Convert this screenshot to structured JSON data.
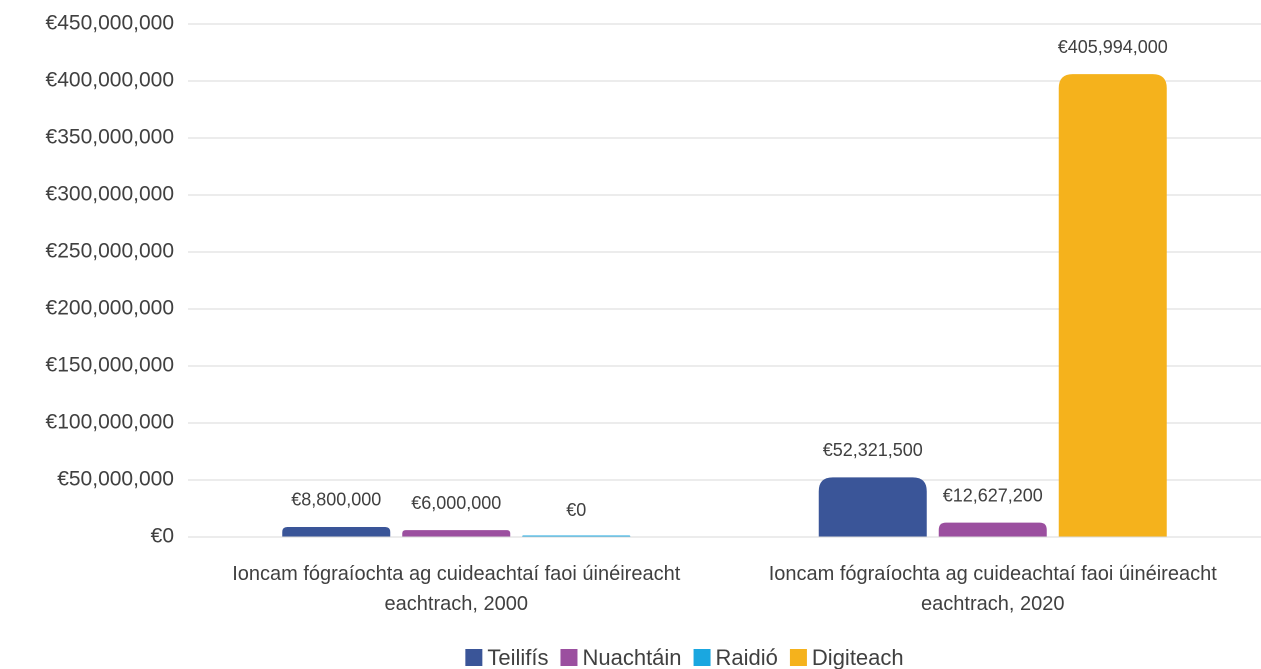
{
  "chart_data": {
    "type": "bar",
    "categories": [
      "Ioncam fógraíochta ag cuideachtaí faoi úinéireacht eachtrach, 2000",
      "Ioncam fógraíochta ag cuideachtaí faoi úinéireacht eachtrach, 2020"
    ],
    "series": [
      {
        "name": "Teilifís",
        "color": "#3a5598",
        "values": [
          8800000,
          52321500
        ],
        "value_labels": [
          "€8,800,000",
          "€52,321,500"
        ]
      },
      {
        "name": "Nuachtáin",
        "color": "#9b4f9f",
        "values": [
          6000000,
          12627200
        ],
        "value_labels": [
          "€6,000,000",
          "€12,627,200"
        ]
      },
      {
        "name": "Raidió",
        "color": "#1aa7e0",
        "values": [
          0,
          null
        ],
        "value_labels": [
          "€0",
          null
        ]
      },
      {
        "name": "Digiteach",
        "color": "#f5b21c",
        "values": [
          null,
          405994000
        ],
        "value_labels": [
          null,
          "€405,994,000"
        ]
      }
    ],
    "ylim": [
      0,
      450000000
    ],
    "yticks": [
      {
        "value": 0,
        "label": "€0"
      },
      {
        "value": 50000000,
        "label": "€50,000,000"
      },
      {
        "value": 100000000,
        "label": "€100,000,000"
      },
      {
        "value": 150000000,
        "label": "€150,000,000"
      },
      {
        "value": 200000000,
        "label": "€200,000,000"
      },
      {
        "value": 250000000,
        "label": "€250,000,000"
      },
      {
        "value": 300000000,
        "label": "€300,000,000"
      },
      {
        "value": 350000000,
        "label": "€350,000,000"
      },
      {
        "value": 400000000,
        "label": "€400,000,000"
      },
      {
        "value": 450000000,
        "label": "€450,000,000"
      }
    ],
    "grid": true,
    "legend": "bottom"
  }
}
